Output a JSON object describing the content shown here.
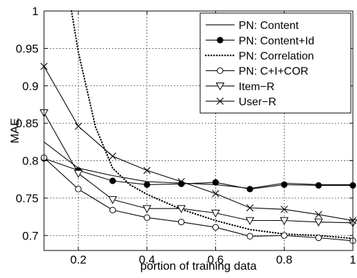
{
  "chart_data": {
    "type": "line",
    "title": "",
    "xlabel": "portion of training data",
    "ylabel": "MAE",
    "xlim": [
      0.1,
      1.0
    ],
    "ylim": [
      0.68,
      1.0
    ],
    "xticks": [
      0.2,
      0.4,
      0.6,
      0.8,
      1.0
    ],
    "xtick_labels": [
      "0.2",
      "0.4",
      "0.6",
      "0.8",
      "1"
    ],
    "yticks": [
      0.7,
      0.75,
      0.8,
      0.85,
      0.9,
      0.95,
      1.0
    ],
    "ytick_labels": [
      "0.7",
      "0.75",
      "0.8",
      "0.85",
      "0.9",
      "0.95",
      "1"
    ],
    "grid": true,
    "legend_position": "top-right",
    "x": [
      0.1,
      0.2,
      0.3,
      0.4,
      0.5,
      0.6,
      0.7,
      0.8,
      0.9,
      1.0
    ],
    "series": [
      {
        "name": "PN: Content",
        "marker": "none",
        "line": "solid",
        "values": [
          0.825,
          0.79,
          0.78,
          0.772,
          0.77,
          0.768,
          0.763,
          0.77,
          0.768,
          0.768
        ]
      },
      {
        "name": "PN: Content+Id",
        "marker": "filled-circle",
        "line": "solid",
        "values": [
          0.803,
          0.787,
          0.773,
          0.768,
          0.769,
          0.771,
          0.762,
          0.768,
          0.767,
          0.767
        ]
      },
      {
        "name": "PN: Correlation",
        "marker": "none",
        "line": "dotted",
        "points": [
          [
            0.18,
            1.0
          ],
          [
            0.2,
            0.945
          ],
          [
            0.25,
            0.845
          ],
          [
            0.3,
            0.79
          ],
          [
            0.35,
            0.768
          ],
          [
            0.4,
            0.755
          ],
          [
            0.5,
            0.735
          ],
          [
            0.6,
            0.72
          ],
          [
            0.7,
            0.708
          ],
          [
            0.8,
            0.702
          ],
          [
            0.9,
            0.7
          ],
          [
            1.0,
            0.696
          ]
        ]
      },
      {
        "name": "PN: C+I+COR",
        "marker": "open-circle",
        "line": "solid",
        "values": [
          0.804,
          0.762,
          0.734,
          0.724,
          0.718,
          0.711,
          0.699,
          0.7,
          0.697,
          0.693
        ]
      },
      {
        "name": "Item−R",
        "marker": "down-triangle",
        "line": "solid",
        "values": [
          0.864,
          0.783,
          0.748,
          0.736,
          0.736,
          0.73,
          0.72,
          0.72,
          0.718,
          0.717
        ]
      },
      {
        "name": "User−R",
        "marker": "x",
        "line": "solid",
        "values": [
          0.926,
          0.846,
          0.806,
          0.787,
          0.772,
          0.756,
          0.737,
          0.735,
          0.728,
          0.72
        ]
      }
    ]
  }
}
